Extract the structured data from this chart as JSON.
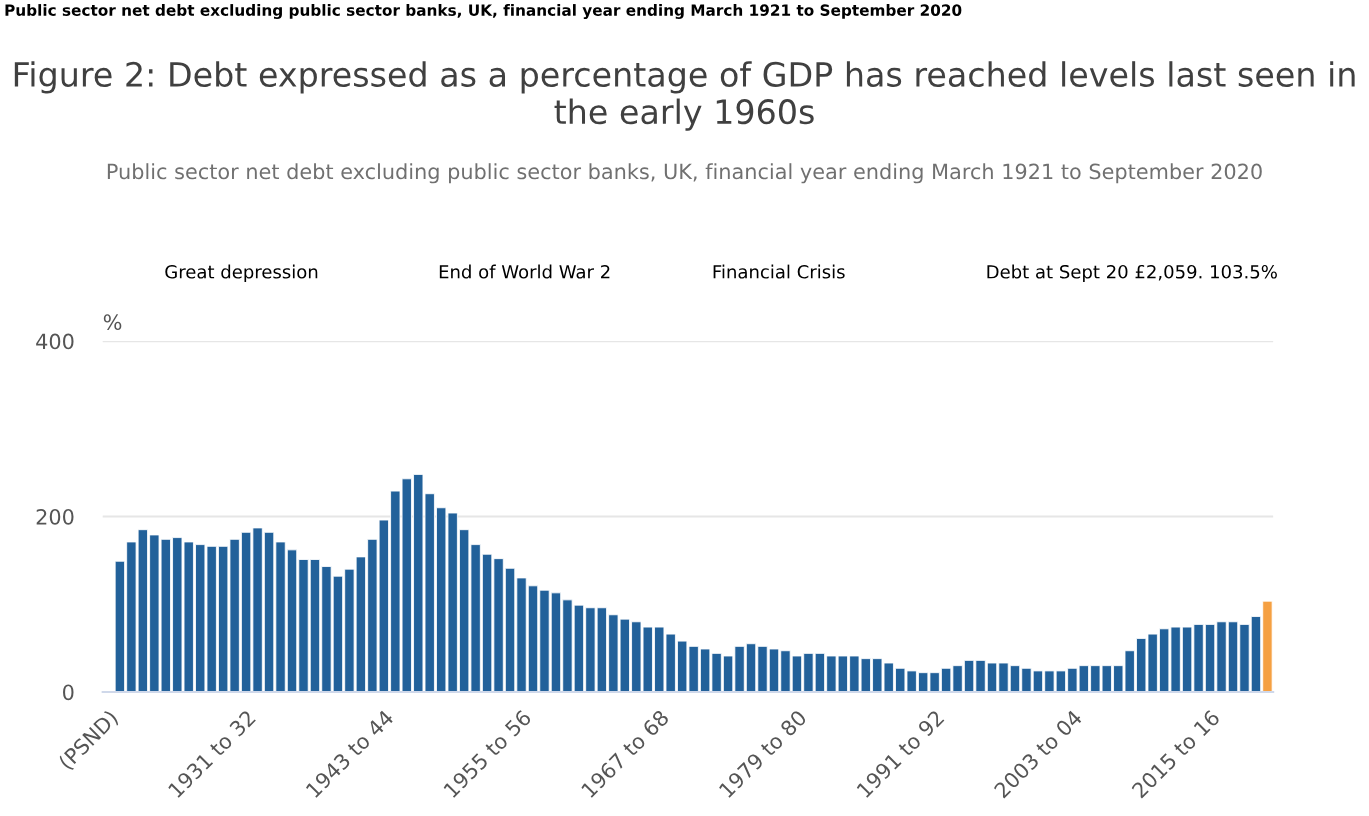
{
  "chart_data": {
    "type": "bar",
    "title": "Figure 2: Debt expressed as a percentage of GDP has reached levels last seen in the early 1960s",
    "subtitle": "Public sector net debt excluding public sector banks, UK, financial year ending March 1921 to September 2020",
    "ylabel": "%",
    "annotations": [
      "Public sector net debt excluding public sector banks, UK, financial year ending March 1921 to September 2020",
      "Great depression",
      "End of World War 2",
      "Financial Crisis",
      "Debt at Sept 20 £2,059. 103.5%"
    ],
    "categories": [
      "(PSND)",
      null,
      null,
      null,
      null,
      null,
      null,
      null,
      null,
      null,
      null,
      null,
      "1931 to 32",
      null,
      null,
      null,
      null,
      null,
      null,
      null,
      null,
      null,
      null,
      null,
      "1943 to 44",
      null,
      null,
      null,
      null,
      null,
      null,
      null,
      null,
      null,
      null,
      null,
      "1955 to 56",
      null,
      null,
      null,
      null,
      null,
      null,
      null,
      null,
      null,
      null,
      null,
      "1967 to 68",
      null,
      null,
      null,
      null,
      null,
      null,
      null,
      null,
      null,
      null,
      null,
      "1979 to 80",
      null,
      null,
      null,
      null,
      null,
      null,
      null,
      null,
      null,
      null,
      null,
      "1991 to 92",
      null,
      null,
      null,
      null,
      null,
      null,
      null,
      null,
      null,
      null,
      null,
      "2003 to 04",
      null,
      null,
      null,
      null,
      null,
      null,
      null,
      null,
      null,
      null,
      null,
      "2015 to 16",
      null,
      null,
      null,
      null,
      null
    ],
    "values": [
      null,
      149,
      171,
      185,
      179,
      174,
      176,
      171,
      168,
      166,
      166,
      174,
      182,
      187,
      182,
      171,
      162,
      151,
      151,
      143,
      132,
      140,
      154,
      174,
      196,
      229,
      243,
      248,
      226,
      210,
      204,
      185,
      168,
      157,
      152,
      141,
      130,
      121,
      116,
      113,
      105,
      99,
      96,
      96,
      88,
      83,
      80,
      74,
      74,
      66,
      58,
      52,
      49,
      44,
      41,
      52,
      55,
      52,
      49,
      47,
      41,
      44,
      44,
      41,
      41,
      41,
      38,
      38,
      33,
      27,
      24,
      22,
      22,
      27,
      30,
      36,
      36,
      33,
      33,
      30,
      27,
      24,
      24,
      24,
      27,
      30,
      30,
      30,
      30,
      47,
      61,
      66,
      72,
      74,
      74,
      77,
      77,
      80,
      80,
      77,
      86,
      103.5
    ],
    "colors": [
      "#22619a",
      "#22619a",
      "#22619a",
      "#22619a",
      "#22619a",
      "#22619a",
      "#22619a",
      "#22619a",
      "#22619a",
      "#22619a",
      "#22619a",
      "#22619a",
      "#22619a",
      "#22619a",
      "#22619a",
      "#22619a",
      "#22619a",
      "#22619a",
      "#22619a",
      "#22619a",
      "#22619a",
      "#22619a",
      "#22619a",
      "#22619a",
      "#22619a",
      "#22619a",
      "#22619a",
      "#22619a",
      "#22619a",
      "#22619a",
      "#22619a",
      "#22619a",
      "#22619a",
      "#22619a",
      "#22619a",
      "#22619a",
      "#22619a",
      "#22619a",
      "#22619a",
      "#22619a",
      "#22619a",
      "#22619a",
      "#22619a",
      "#22619a",
      "#22619a",
      "#22619a",
      "#22619a",
      "#22619a",
      "#22619a",
      "#22619a",
      "#22619a",
      "#22619a",
      "#22619a",
      "#22619a",
      "#22619a",
      "#22619a",
      "#22619a",
      "#22619a",
      "#22619a",
      "#22619a",
      "#22619a",
      "#22619a",
      "#22619a",
      "#22619a",
      "#22619a",
      "#22619a",
      "#22619a",
      "#22619a",
      "#22619a",
      "#22619a",
      "#22619a",
      "#22619a",
      "#22619a",
      "#22619a",
      "#22619a",
      "#22619a",
      "#22619a",
      "#22619a",
      "#22619a",
      "#22619a",
      "#22619a",
      "#22619a",
      "#22619a",
      "#22619a",
      "#22619a",
      "#22619a",
      "#22619a",
      "#22619a",
      "#22619a",
      "#22619a",
      "#22619a",
      "#22619a",
      "#22619a",
      "#22619a",
      "#22619a",
      "#22619a",
      "#22619a",
      "#22619a",
      "#22619a",
      "#22619a",
      "#22619a",
      "#f5a042"
    ],
    "ylim": [
      0,
      400
    ],
    "yticks": [
      0,
      200,
      400
    ],
    "grid": "y",
    "legend": false
  }
}
